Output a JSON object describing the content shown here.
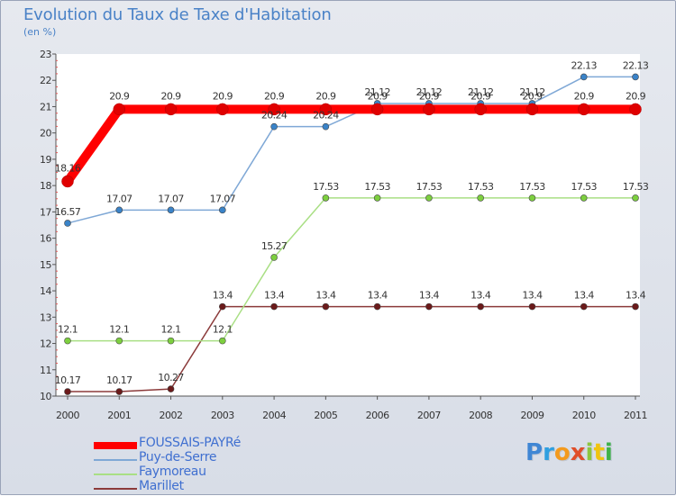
{
  "title": "Evolution du Taux de Taxe d'Habitation",
  "unit_label": "(en %)",
  "chart_data": {
    "type": "line",
    "title": "Evolution du Taux de Taxe d'Habitation",
    "ylabel": "(en %)",
    "xlabel": "",
    "ylim": [
      10,
      23
    ],
    "grid": false,
    "x": [
      "2000",
      "2001",
      "2002",
      "2003",
      "2004",
      "2005",
      "2006",
      "2007",
      "2008",
      "2009",
      "2010",
      "2011"
    ],
    "yticks": [
      "10",
      "11",
      "12",
      "13",
      "14",
      "15",
      "16",
      "17",
      "18",
      "19",
      "20",
      "21",
      "22",
      "23"
    ],
    "series": [
      {
        "name": "FOUSSAIS-PAYRé",
        "values": [
          18.16,
          20.9,
          20.9,
          20.9,
          20.9,
          20.9,
          20.9,
          20.9,
          20.9,
          20.9,
          20.9,
          20.9
        ],
        "labels": [
          "18.16",
          "20.9",
          "20.9",
          "20.9",
          "20.9",
          "20.9",
          "20.9",
          "20.9",
          "20.9",
          "20.9",
          "20.9",
          "20.9"
        ],
        "color": "#ff0000",
        "marker_color": "#e00000",
        "bold": true
      },
      {
        "name": "Puy-de-Serre",
        "values": [
          16.57,
          17.07,
          17.07,
          17.07,
          20.24,
          20.24,
          21.12,
          21.12,
          21.12,
          21.12,
          22.13,
          22.13
        ],
        "labels": [
          "16.57",
          "17.07",
          "17.07",
          "17.07",
          "20.24",
          "20.24",
          "21.12",
          "21.12",
          "21.12",
          "21.12",
          "22.13",
          "22.13"
        ],
        "color": "#7fa8d6",
        "marker_color": "#3a83c8",
        "bold": false
      },
      {
        "name": "Faymoreau",
        "values": [
          12.1,
          12.1,
          12.1,
          12.1,
          15.27,
          17.53,
          17.53,
          17.53,
          17.53,
          17.53,
          17.53,
          17.53
        ],
        "labels": [
          "12.1",
          "12.1",
          "12.1",
          "12.1",
          "15.27",
          "17.53",
          "17.53",
          "17.53",
          "17.53",
          "17.53",
          "17.53",
          "17.53"
        ],
        "color": "#a9df84",
        "marker_color": "#7dcf3f",
        "bold": false
      },
      {
        "name": "Marillet",
        "values": [
          10.17,
          10.17,
          10.27,
          13.4,
          13.4,
          13.4,
          13.4,
          13.4,
          13.4,
          13.4,
          13.4,
          13.4
        ],
        "labels": [
          "10.17",
          "10.17",
          "10.27",
          "13.4",
          "13.4",
          "13.4",
          "13.4",
          "13.4",
          "13.4",
          "13.4",
          "13.4",
          "13.4"
        ],
        "color": "#8b3a3a",
        "marker_color": "#6b1a1a",
        "bold": false
      }
    ]
  },
  "logo": {
    "letters": [
      "P",
      "r",
      "o",
      "x",
      "i",
      "t",
      "i"
    ],
    "colors": [
      "#3f86d4",
      "#2f9fe0",
      "#f39a1e",
      "#e04e2a",
      "#8cc63f",
      "#f1c40f",
      "#3fb24a"
    ]
  }
}
